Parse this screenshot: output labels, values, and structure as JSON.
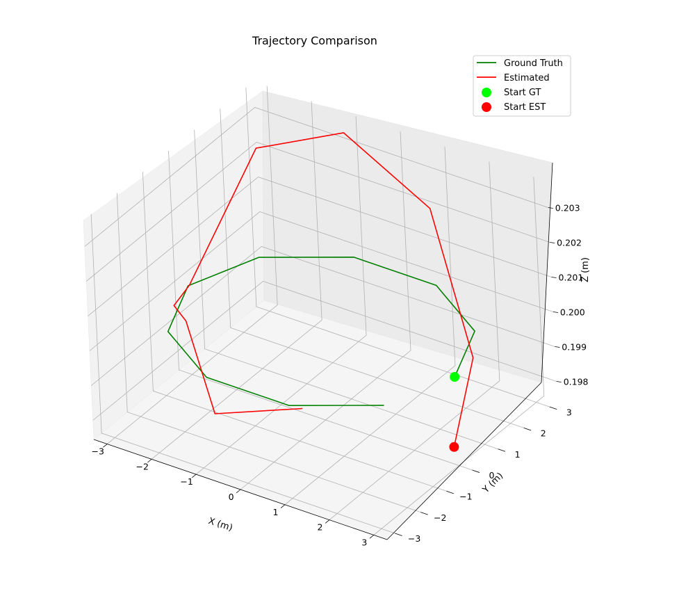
{
  "chart_data": {
    "type": "line",
    "projection": "3d",
    "title": "Trajectory Comparison",
    "xlabel": "X (m)",
    "ylabel": "Y (m)",
    "zlabel": "Z (m)",
    "grid": true,
    "legend_position": "top-right",
    "xlim": [
      -3.3,
      3.3
    ],
    "ylim": [
      -3.3,
      3.3
    ],
    "zlim": [
      0.19745,
      0.20375
    ],
    "x_ticks": [
      "−3",
      "−2",
      "−1",
      "0",
      "1",
      "2",
      "3"
    ],
    "y_ticks": [
      "−3",
      "−2",
      "−1",
      "0",
      "1",
      "2",
      "3"
    ],
    "z_ticks": [
      "0.198",
      "0.199",
      "0.200",
      "0.201",
      "0.202",
      "0.203"
    ],
    "series": [
      {
        "name": "Ground Truth",
        "color": "#008000",
        "points": [
          {
            "x": 3.0,
            "y": 0.0,
            "z": 0.2
          },
          {
            "x": 2.43,
            "y": 1.76,
            "z": 0.2
          },
          {
            "x": 0.93,
            "y": 2.85,
            "z": 0.2
          },
          {
            "x": -0.93,
            "y": 2.85,
            "z": 0.2
          },
          {
            "x": -2.43,
            "y": 1.76,
            "z": 0.2
          },
          {
            "x": -3.0,
            "y": 0.0,
            "z": 0.2
          },
          {
            "x": -2.43,
            "y": -1.76,
            "z": 0.2
          },
          {
            "x": -0.93,
            "y": -2.85,
            "z": 0.2
          },
          {
            "x": 0.93,
            "y": -2.85,
            "z": 0.2
          },
          {
            "x": 2.43,
            "y": -1.76,
            "z": 0.2
          }
        ]
      },
      {
        "name": "Estimated",
        "color": "#ff0000",
        "points": [
          {
            "x": 2.88,
            "y": 0.05,
            "z": 0.1979
          },
          {
            "x": 2.43,
            "y": 1.65,
            "z": 0.1993
          },
          {
            "x": 0.95,
            "y": 2.72,
            "z": 0.2023
          },
          {
            "x": -0.98,
            "y": 2.78,
            "z": 0.2036
          },
          {
            "x": -2.35,
            "y": 1.72,
            "z": 0.2032
          },
          {
            "x": -2.92,
            "y": -0.08,
            "z": 0.2001
          },
          {
            "x": -2.7,
            "y": -1.05,
            "z": 0.2002
          },
          {
            "x": -2.35,
            "y": -1.2,
            "z": 0.2
          },
          {
            "x": -0.93,
            "y": -2.6,
            "z": 0.1988
          },
          {
            "x": 1.2,
            "y": -2.8,
            "z": 0.2
          }
        ]
      }
    ],
    "markers": [
      {
        "name": "Start GT",
        "color": "#00ff00",
        "x": 3.0,
        "y": 0.0,
        "z": 0.2
      },
      {
        "name": "Start EST",
        "color": "#ff0000",
        "x": 2.88,
        "y": 0.05,
        "z": 0.1979
      }
    ]
  }
}
